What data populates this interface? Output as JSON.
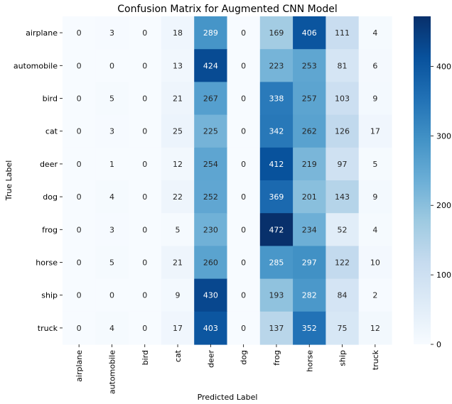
{
  "chart_data": {
    "type": "heatmap",
    "title": "Confusion Matrix for Augmented CNN Model",
    "xlabel": "Predicted Label",
    "ylabel": "True Label",
    "x_categories": [
      "airplane",
      "automobile",
      "bird",
      "cat",
      "deer",
      "dog",
      "frog",
      "horse",
      "ship",
      "truck"
    ],
    "y_categories": [
      "airplane",
      "automobile",
      "bird",
      "cat",
      "deer",
      "dog",
      "frog",
      "horse",
      "ship",
      "truck"
    ],
    "values": [
      [
        0,
        3,
        0,
        18,
        289,
        0,
        169,
        406,
        111,
        4
      ],
      [
        0,
        0,
        0,
        13,
        424,
        0,
        223,
        253,
        81,
        6
      ],
      [
        0,
        5,
        0,
        21,
        267,
        0,
        338,
        257,
        103,
        9
      ],
      [
        0,
        3,
        0,
        25,
        225,
        0,
        342,
        262,
        126,
        17
      ],
      [
        0,
        1,
        0,
        12,
        254,
        0,
        412,
        219,
        97,
        5
      ],
      [
        0,
        4,
        0,
        22,
        252,
        0,
        369,
        201,
        143,
        9
      ],
      [
        0,
        3,
        0,
        5,
        230,
        0,
        472,
        234,
        52,
        4
      ],
      [
        0,
        5,
        0,
        21,
        260,
        0,
        285,
        297,
        122,
        10
      ],
      [
        0,
        0,
        0,
        9,
        430,
        0,
        193,
        282,
        84,
        2
      ],
      [
        0,
        4,
        0,
        17,
        403,
        0,
        137,
        352,
        75,
        12
      ]
    ],
    "colorbar": {
      "colormap": "Blues",
      "min": 0,
      "max": 472,
      "ticks": [
        0,
        100,
        200,
        300,
        400
      ]
    }
  }
}
